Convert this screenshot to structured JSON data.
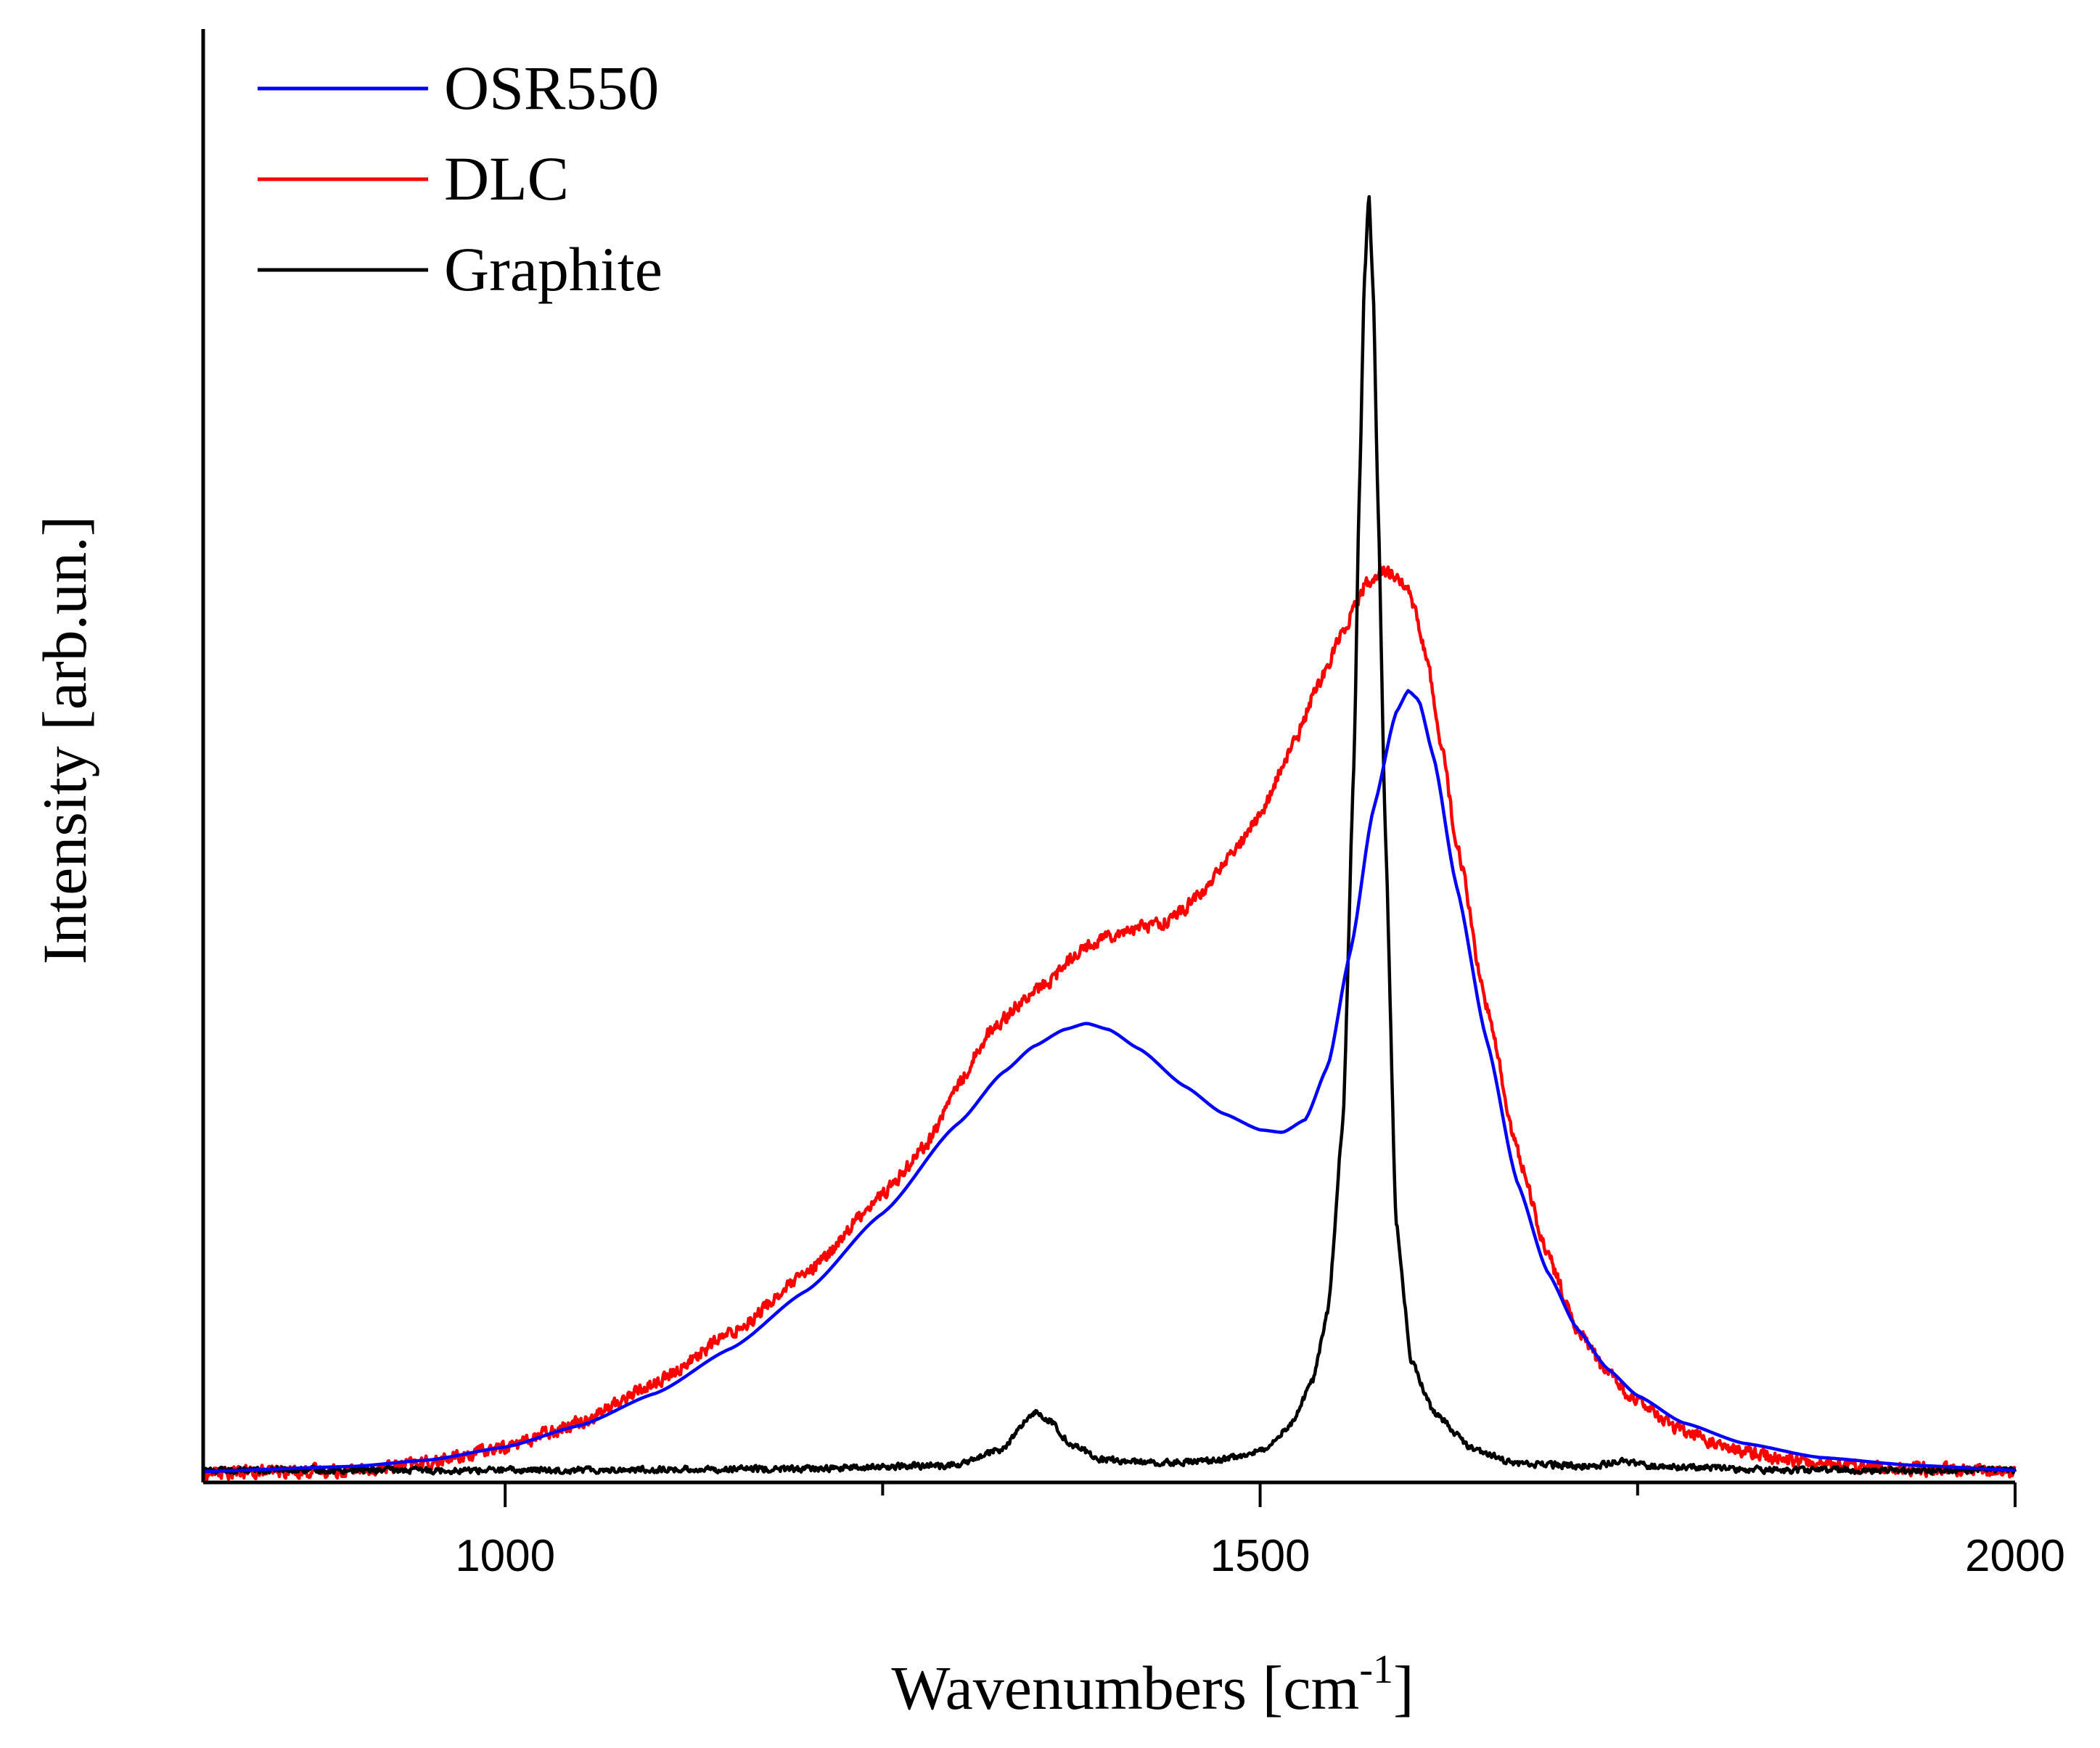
{
  "chart_data": {
    "type": "line",
    "title": "",
    "xlabel": "Wavenumbers [cm",
    "xlabel_sup": "-1",
    "xlabel_end": "]",
    "ylabel": "Intensity [arb.un.]",
    "xlim": [
      800,
      2000
    ],
    "ylim": [
      0,
      100
    ],
    "x_ticks": [
      1000,
      1500,
      2000
    ],
    "x_minor_ticks": [
      1250,
      1750
    ],
    "y_ticks_labeled": false,
    "legend_position": "top-left",
    "series": [
      {
        "name": "OSR550",
        "color": "#0000ff",
        "noise": 0,
        "points": [
          [
            800,
            0.4
          ],
          [
            900,
            0.8
          ],
          [
            950,
            1.3
          ],
          [
            1000,
            2.3
          ],
          [
            1050,
            4.0
          ],
          [
            1100,
            6.5
          ],
          [
            1150,
            10.0
          ],
          [
            1200,
            14.5
          ],
          [
            1250,
            20.5
          ],
          [
            1300,
            27.5
          ],
          [
            1330,
            31.5
          ],
          [
            1350,
            33.5
          ],
          [
            1370,
            34.8
          ],
          [
            1385,
            35.3
          ],
          [
            1400,
            34.8
          ],
          [
            1420,
            33.3
          ],
          [
            1450,
            30.4
          ],
          [
            1475,
            28.3
          ],
          [
            1500,
            27.0
          ],
          [
            1515,
            26.8
          ],
          [
            1530,
            27.8
          ],
          [
            1545,
            32.0
          ],
          [
            1560,
            41.0
          ],
          [
            1575,
            52.0
          ],
          [
            1590,
            59.5
          ],
          [
            1598,
            61.2
          ],
          [
            1605,
            60.5
          ],
          [
            1615,
            56.0
          ],
          [
            1630,
            46.0
          ],
          [
            1650,
            34.0
          ],
          [
            1670,
            23.0
          ],
          [
            1690,
            16.0
          ],
          [
            1710,
            11.5
          ],
          [
            1730,
            8.4
          ],
          [
            1750,
            6.3
          ],
          [
            1780,
            4.2
          ],
          [
            1820,
            2.6
          ],
          [
            1870,
            1.5
          ],
          [
            1930,
            0.9
          ],
          [
            2000,
            0.5
          ]
        ]
      },
      {
        "name": "DLC",
        "color": "#ff0000",
        "noise": 0.45,
        "points": [
          [
            800,
            0.3
          ],
          [
            900,
            0.5
          ],
          [
            950,
            1.1
          ],
          [
            1000,
            2.3
          ],
          [
            1050,
            4.3
          ],
          [
            1100,
            7.3
          ],
          [
            1150,
            11.2
          ],
          [
            1200,
            15.8
          ],
          [
            1250,
            22.0
          ],
          [
            1280,
            26.0
          ],
          [
            1300,
            30.5
          ],
          [
            1320,
            34.5
          ],
          [
            1340,
            36.8
          ],
          [
            1360,
            38.5
          ],
          [
            1380,
            41.0
          ],
          [
            1400,
            42.2
          ],
          [
            1420,
            42.8
          ],
          [
            1440,
            43.3
          ],
          [
            1460,
            45.2
          ],
          [
            1480,
            48.3
          ],
          [
            1500,
            51.5
          ],
          [
            1520,
            56.5
          ],
          [
            1540,
            62.0
          ],
          [
            1555,
            66.0
          ],
          [
            1570,
            69.5
          ],
          [
            1580,
            70.5
          ],
          [
            1590,
            70.2
          ],
          [
            1600,
            68.5
          ],
          [
            1610,
            64.0
          ],
          [
            1620,
            57.0
          ],
          [
            1630,
            49.5
          ],
          [
            1650,
            36.5
          ],
          [
            1670,
            25.5
          ],
          [
            1690,
            17.3
          ],
          [
            1710,
            11.5
          ],
          [
            1730,
            8.0
          ],
          [
            1750,
            5.8
          ],
          [
            1780,
            3.5
          ],
          [
            1820,
            1.9
          ],
          [
            1870,
            1.0
          ],
          [
            1930,
            0.6
          ],
          [
            2000,
            0.4
          ]
        ]
      },
      {
        "name": "Graphite",
        "color": "#000000",
        "noise": 0.22,
        "points": [
          [
            800,
            0.5
          ],
          [
            1000,
            0.5
          ],
          [
            1200,
            0.6
          ],
          [
            1300,
            0.9
          ],
          [
            1330,
            2.2
          ],
          [
            1345,
            4.3
          ],
          [
            1352,
            5.1
          ],
          [
            1360,
            4.4
          ],
          [
            1375,
            2.5
          ],
          [
            1395,
            1.3
          ],
          [
            1430,
            1.1
          ],
          [
            1470,
            1.2
          ],
          [
            1500,
            2.0
          ],
          [
            1520,
            4.0
          ],
          [
            1535,
            7.5
          ],
          [
            1545,
            13.0
          ],
          [
            1555,
            28.0
          ],
          [
            1562,
            55.0
          ],
          [
            1566,
            78.0
          ],
          [
            1569,
            93.0
          ],
          [
            1572,
            100.0
          ],
          [
            1575,
            92.0
          ],
          [
            1578,
            76.0
          ],
          [
            1583,
            50.0
          ],
          [
            1590,
            20.0
          ],
          [
            1600,
            9.0
          ],
          [
            1615,
            5.0
          ],
          [
            1640,
            2.2
          ],
          [
            1670,
            1.0
          ],
          [
            1720,
            0.8
          ],
          [
            1740,
            1.2
          ],
          [
            1760,
            0.8
          ],
          [
            1850,
            0.5
          ],
          [
            1950,
            0.5
          ],
          [
            2000,
            0.5
          ]
        ]
      }
    ]
  }
}
